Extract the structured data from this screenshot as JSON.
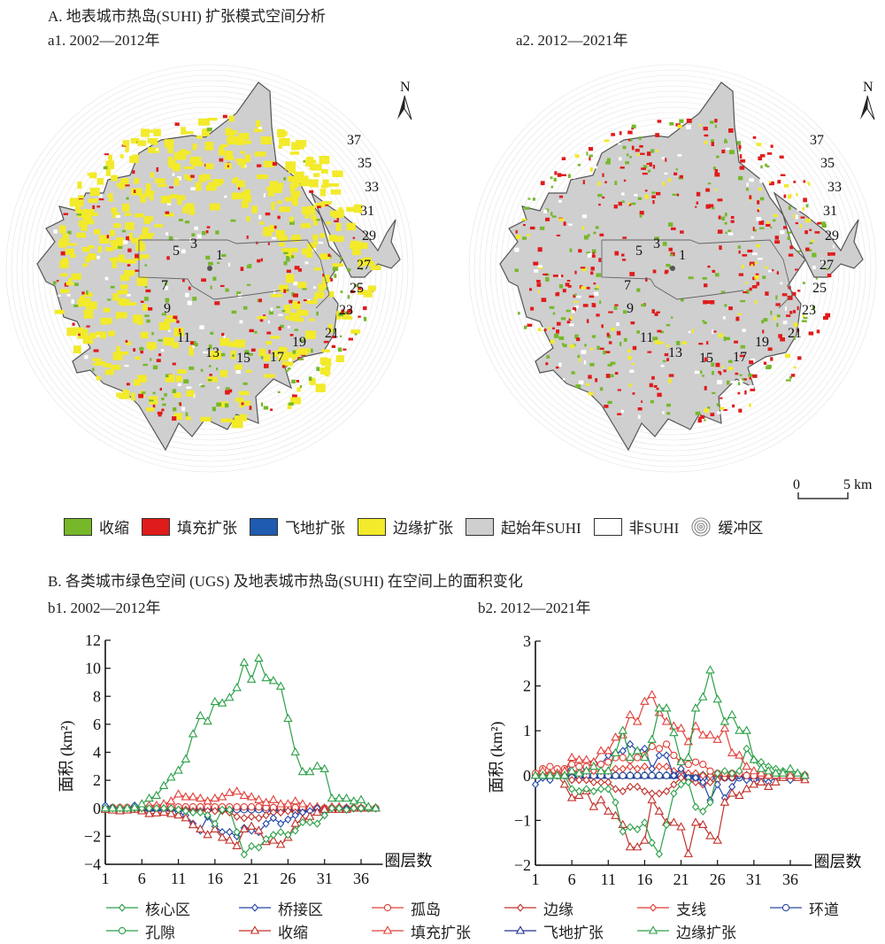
{
  "section_a": {
    "title": "A. 地表城市热岛(SUHI) 扩张模式空间分析",
    "maps": [
      {
        "id": "a1",
        "subtitle": "a1. 2002—2012年"
      },
      {
        "id": "a2",
        "subtitle": "a2. 2012—2021年"
      }
    ],
    "north_label": "N",
    "ring_labels": [
      "1",
      "3",
      "5",
      "7",
      "9",
      "11",
      "13",
      "15",
      "17",
      "19",
      "21",
      "23",
      "25",
      "27",
      "29",
      "31",
      "33",
      "35",
      "37"
    ],
    "scale_bar": {
      "start": "0",
      "end": "5 km"
    },
    "legend": [
      {
        "label": "收缩",
        "color": "#76b82a",
        "type": "swatch"
      },
      {
        "label": "填充扩张",
        "color": "#e01b1b",
        "type": "swatch"
      },
      {
        "label": "飞地扩张",
        "color": "#1f5bb0",
        "type": "swatch"
      },
      {
        "label": "边缘扩张",
        "color": "#f2ea2a",
        "type": "swatch"
      },
      {
        "label": "起始年SUHI",
        "color": "#cfcfcf",
        "type": "swatch"
      },
      {
        "label": "非SUHI",
        "color": "#ffffff",
        "type": "swatch"
      },
      {
        "label": "缓冲区",
        "color": "#bbbbbb",
        "type": "rings"
      }
    ]
  },
  "section_b": {
    "title": "B. 各类城市绿色空间 (UGS) 及地表城市热岛(SUHI) 在空间上的面积变化",
    "legend": [
      {
        "label": "核心区",
        "color": "#2ca048",
        "marker": "diamond"
      },
      {
        "label": "桥接区",
        "color": "#2346a8",
        "marker": "diamond"
      },
      {
        "label": "孤岛",
        "color": "#e0403a",
        "marker": "circle"
      },
      {
        "label": "边缘",
        "color": "#c0302a",
        "marker": "diamond"
      },
      {
        "label": "支线",
        "color": "#e03a30",
        "marker": "diamond"
      },
      {
        "label": "环道",
        "color": "#2a4aa0",
        "marker": "circle"
      },
      {
        "label": "孔隙",
        "color": "#2ca048",
        "marker": "circle"
      },
      {
        "label": "收缩",
        "color": "#c0302a",
        "marker": "triangle"
      },
      {
        "label": "填充扩张",
        "color": "#e0403a",
        "marker": "triangle"
      },
      {
        "label": "飞地扩张",
        "color": "#22358f",
        "marker": "triangle"
      },
      {
        "label": "边缘扩张",
        "color": "#2ca048",
        "marker": "triangle"
      }
    ]
  },
  "chart_data": [
    {
      "id": "b1",
      "type": "line",
      "title": "b1. 2002—2012年",
      "xlabel": "圈层数",
      "ylabel": "面积 (km²)",
      "ylim": [
        -4,
        12
      ],
      "yticks": [
        -4,
        -2,
        0,
        2,
        4,
        6,
        8,
        10,
        12
      ],
      "xticks": [
        1,
        6,
        11,
        16,
        21,
        26,
        31,
        36
      ],
      "x": [
        1,
        2,
        3,
        4,
        5,
        6,
        7,
        8,
        9,
        10,
        11,
        12,
        13,
        14,
        15,
        16,
        17,
        18,
        19,
        20,
        21,
        22,
        23,
        24,
        25,
        26,
        27,
        28,
        29,
        30,
        31,
        32,
        33,
        34,
        35,
        36,
        37,
        38
      ],
      "series": [
        {
          "name": "边缘扩张",
          "values": [
            0,
            0,
            0,
            0,
            0.05,
            0.3,
            0.7,
            0.9,
            1.6,
            2.2,
            2.7,
            3.5,
            5.3,
            6.6,
            6.2,
            7.6,
            7.5,
            7.9,
            8.6,
            10.4,
            9.2,
            10.7,
            9.3,
            9.1,
            8.7,
            6.4,
            4.0,
            2.6,
            2.6,
            3.0,
            2.8,
            0.7,
            0.7,
            0.7,
            0.5,
            0.6,
            0.1,
            0
          ]
        },
        {
          "name": "填充扩张",
          "values": [
            0,
            0,
            0,
            0,
            0.05,
            0.1,
            0.2,
            0.2,
            0.3,
            0.5,
            1.0,
            0.8,
            0.8,
            0.7,
            0.5,
            0.7,
            0.8,
            1.1,
            1.2,
            0.9,
            0.8,
            0.6,
            0.4,
            0.6,
            0.3,
            0.3,
            0.5,
            0.3,
            0.1,
            0.1,
            0,
            0.1,
            0.1,
            0,
            0.1,
            0,
            0,
            0
          ]
        },
        {
          "name": "收缩",
          "values": [
            -0.1,
            -0.15,
            -0.2,
            -0.15,
            -0.1,
            -0.2,
            -0.4,
            -0.35,
            -0.3,
            -0.4,
            -0.5,
            -0.7,
            -1.2,
            -1.5,
            -1.9,
            -1.5,
            -2.1,
            -2.3,
            -2.7,
            -1.5,
            -1.3,
            -1.6,
            -2.4,
            -2.3,
            -2.6,
            -2.1,
            -1.1,
            -0.8,
            -0.6,
            -0.3,
            -0.1,
            -0.1,
            -0.1,
            -0.1,
            0,
            0,
            0,
            0
          ]
        },
        {
          "name": "核心区",
          "values": [
            0,
            0,
            0,
            0,
            0,
            0,
            0,
            0,
            0,
            0,
            -0.1,
            -0.2,
            -0.3,
            -0.3,
            -0.5,
            -1.1,
            -0.1,
            -0.1,
            -1.7,
            -3.3,
            -2.7,
            -2.8,
            -2.2,
            -1.9,
            -1.7,
            -1.9,
            -1.6,
            -1.0,
            -1.0,
            -1.1,
            -0.5,
            0,
            0,
            -0.1,
            0,
            0,
            0,
            0
          ]
        },
        {
          "name": "桥接区",
          "values": [
            0.2,
            0.05,
            0,
            0,
            0.2,
            0,
            -0.1,
            -0.1,
            0,
            0,
            -0.3,
            -0.5,
            -1.1,
            -1.6,
            -0.6,
            -1.3,
            -1.7,
            -1.7,
            -2.0,
            -1.4,
            -1.6,
            -1.7,
            -1.1,
            -0.7,
            -1.1,
            -0.8,
            -0.5,
            -0.3,
            -0.2,
            0,
            -0.5,
            0,
            0,
            0,
            0,
            0,
            0,
            0
          ]
        },
        {
          "name": "边缘",
          "values": [
            0,
            0,
            0,
            0,
            0,
            0,
            0,
            0,
            0,
            -0.1,
            -0.1,
            -0.1,
            -0.2,
            -0.2,
            -0.2,
            -0.2,
            -0.2,
            -0.3,
            -0.6,
            -0.7,
            -0.6,
            -0.7,
            -0.5,
            -0.3,
            -0.3,
            -0.2,
            -0.3,
            -0.3,
            -0.2,
            0,
            0,
            0,
            0,
            0,
            0,
            0,
            0,
            0
          ]
        },
        {
          "name": "孤岛",
          "values": [
            0.05,
            0.05,
            0.05,
            0.05,
            0.05,
            0.1,
            0.1,
            0.1,
            0.15,
            0.1,
            0.1,
            0.1,
            0.1,
            0.1,
            0.1,
            0.1,
            0.1,
            0.1,
            0.1,
            0.1,
            0.1,
            0.1,
            0.05,
            0.05,
            0.05,
            0.05,
            0.05,
            0.05,
            0,
            0,
            0,
            0,
            0,
            0,
            0,
            0,
            0,
            0
          ]
        },
        {
          "name": "支线",
          "values": [
            0,
            0,
            0,
            0,
            0,
            0,
            0,
            0,
            0,
            0,
            0,
            0,
            0,
            0,
            0,
            0,
            0,
            0,
            0,
            0,
            0,
            0,
            0,
            0,
            0,
            0,
            0,
            0,
            0,
            0,
            0,
            0,
            0,
            0,
            0,
            0,
            0,
            0
          ]
        },
        {
          "name": "环道",
          "values": [
            0,
            0,
            0,
            0,
            0,
            0,
            -0.05,
            -0.05,
            -0.05,
            -0.05,
            -0.05,
            -0.05,
            -0.05,
            -0.05,
            -0.05,
            -0.05,
            -0.05,
            -0.1,
            -0.1,
            -0.1,
            -0.1,
            -0.1,
            -0.1,
            -0.1,
            -0.1,
            -0.1,
            -0.05,
            -0.05,
            -0.05,
            0,
            0,
            0,
            0,
            0,
            0,
            0,
            0,
            0
          ]
        },
        {
          "name": "孔隙",
          "values": [
            0,
            0,
            0,
            0,
            0,
            0,
            0,
            0,
            0,
            0,
            0,
            0,
            0,
            0,
            0,
            0,
            0,
            0,
            0,
            0,
            0,
            0,
            0,
            0,
            0,
            0,
            0,
            0,
            0,
            0,
            0,
            0,
            0,
            0,
            0,
            0,
            0,
            0
          ]
        },
        {
          "name": "飞地扩张",
          "values": [
            0,
            0,
            0,
            0,
            0,
            0,
            0,
            0,
            0,
            0,
            0,
            0,
            0,
            0,
            0,
            0,
            0,
            0,
            0,
            0,
            0,
            0,
            0,
            0,
            0,
            0,
            0,
            0,
            0,
            0,
            0,
            0,
            0,
            0,
            0,
            0,
            0,
            0
          ]
        }
      ]
    },
    {
      "id": "b2",
      "type": "line",
      "title": "b2. 2012—2021年",
      "xlabel": "圈层数",
      "ylabel": "面积 (km²)",
      "ylim": [
        -2,
        3
      ],
      "yticks": [
        -2,
        -1,
        0,
        1,
        2,
        3
      ],
      "xticks": [
        1,
        6,
        11,
        16,
        21,
        26,
        31,
        36
      ],
      "x": [
        1,
        2,
        3,
        4,
        5,
        6,
        7,
        8,
        9,
        10,
        11,
        12,
        13,
        14,
        15,
        16,
        17,
        18,
        19,
        20,
        21,
        22,
        23,
        24,
        25,
        26,
        27,
        28,
        29,
        30,
        31,
        32,
        33,
        34,
        35,
        36,
        37,
        38
      ],
      "series": [
        {
          "name": "边缘扩张",
          "values": [
            0,
            0,
            0,
            0,
            0,
            0.1,
            0.05,
            0.1,
            0.2,
            0.1,
            0.1,
            0.5,
            1.0,
            0.4,
            0.55,
            0.4,
            0.8,
            1.5,
            1.5,
            0.95,
            0.3,
            0.4,
            1.5,
            1.75,
            2.35,
            1.7,
            1.2,
            1.35,
            1.0,
            1.0,
            0.35,
            0.15,
            0.1,
            0.05,
            0.05,
            0.15,
            0.05,
            0
          ]
        },
        {
          "name": "填充扩张",
          "values": [
            0,
            0.1,
            0.05,
            0.05,
            0.1,
            0.4,
            0.35,
            0.35,
            0.3,
            0.55,
            0.55,
            0.85,
            0.9,
            1.35,
            1.2,
            1.65,
            1.8,
            1.4,
            1.2,
            1.1,
            1.05,
            0.75,
            1.1,
            0.9,
            0.9,
            0.8,
            1.05,
            0.5,
            0.45,
            0.2,
            0.1,
            0.05,
            0,
            0,
            0,
            0,
            0,
            0
          ]
        },
        {
          "name": "收缩",
          "values": [
            0,
            0,
            0,
            0,
            -0.2,
            -0.5,
            -0.45,
            -0.35,
            -0.7,
            -0.55,
            -0.8,
            -0.9,
            -1.1,
            -1.6,
            -1.6,
            -1.45,
            -0.55,
            -0.8,
            -1.05,
            -1.05,
            -1.15,
            -1.75,
            -1.05,
            -1.1,
            -1.35,
            -1.45,
            -0.6,
            -0.4,
            -0.45,
            -0.3,
            -0.2,
            -0.15,
            -0.25,
            -0.15,
            -0.05,
            0,
            -0.05,
            -0.1
          ]
        },
        {
          "name": "核心区",
          "values": [
            0,
            0,
            0,
            0,
            0,
            -0.3,
            -0.35,
            -0.3,
            -0.35,
            -0.3,
            -0.3,
            -0.6,
            -1.25,
            -1.15,
            -1.2,
            -1.05,
            -1.5,
            -1.75,
            -1.1,
            -0.4,
            -0.2,
            -0.15,
            -0.7,
            -0.8,
            -0.6,
            0.05,
            0.1,
            0.05,
            0.1,
            0.6,
            0.35,
            0.3,
            0.2,
            0.15,
            0.1,
            0.05,
            0.05,
            0
          ]
        },
        {
          "name": "桥接区",
          "values": [
            -0.2,
            -0.05,
            -0.1,
            0,
            0,
            0.25,
            0.2,
            0.15,
            0.3,
            0.25,
            0.45,
            0.5,
            0.55,
            0.7,
            0.55,
            0.6,
            0.15,
            0.45,
            0.45,
            0,
            0.15,
            -0.05,
            -0.05,
            -0.15,
            -0.55,
            -0.2,
            -0.5,
            -0.25,
            0,
            -0.1,
            -0.1,
            -0.1,
            -0.15,
            -0.05,
            0,
            -0.1,
            0,
            0
          ]
        },
        {
          "name": "孤岛",
          "values": [
            0.05,
            0.15,
            0.2,
            0.15,
            0.15,
            0.25,
            0.2,
            0.2,
            0.25,
            0.25,
            0.3,
            0.4,
            0.4,
            0.35,
            0.4,
            0.45,
            0.65,
            0.6,
            0.7,
            0.45,
            0.3,
            0.25,
            0.3,
            0.25,
            0.1,
            0.05,
            0.05,
            0.05,
            0.05,
            0,
            0,
            0,
            0,
            0,
            0,
            0,
            0,
            0
          ]
        },
        {
          "name": "边缘",
          "values": [
            0,
            0,
            -0.05,
            0,
            0,
            -0.1,
            -0.1,
            -0.1,
            -0.15,
            -0.15,
            -0.15,
            -0.3,
            -0.35,
            -0.25,
            -0.25,
            -0.35,
            -0.4,
            -0.4,
            -0.35,
            -0.2,
            -0.05,
            -0.1,
            -0.15,
            -0.2,
            -0.15,
            -0.1,
            -0.05,
            -0.05,
            0,
            0,
            0,
            0,
            0,
            0,
            0,
            0,
            0,
            0
          ]
        },
        {
          "name": "支线",
          "values": [
            0,
            0.05,
            0.05,
            0.05,
            0.1,
            0.1,
            0.1,
            0.1,
            0.1,
            0.1,
            0.1,
            0.15,
            0.15,
            0.2,
            0.15,
            0.2,
            0.15,
            0.2,
            0.2,
            0.1,
            0.1,
            0.05,
            0.05,
            0,
            0,
            0,
            0,
            0,
            0,
            0,
            0,
            0,
            0,
            0,
            0,
            0,
            0,
            0
          ]
        },
        {
          "name": "环道",
          "values": [
            0,
            0,
            0,
            0,
            0,
            -0.05,
            0,
            0,
            0,
            0,
            0,
            0,
            0,
            0,
            0,
            0,
            0,
            0,
            0,
            0,
            0,
            -0.05,
            -0.05,
            -0.05,
            -0.05,
            -0.05,
            -0.05,
            -0.05,
            -0.05,
            -0.05,
            -0.05,
            0,
            0,
            0,
            0,
            0,
            0,
            0
          ]
        },
        {
          "name": "孔隙",
          "values": [
            0,
            0,
            0,
            0,
            0,
            0,
            0,
            0,
            0,
            0,
            0,
            0,
            0,
            0,
            0,
            0,
            0,
            0,
            0,
            0,
            0,
            0,
            0,
            0,
            0,
            0,
            0,
            0,
            0,
            0,
            0,
            0,
            0,
            0,
            0,
            0,
            0,
            0
          ]
        },
        {
          "name": "飞地扩张",
          "values": [
            0,
            0,
            0,
            0,
            0,
            0,
            0,
            0,
            0,
            0,
            0,
            0,
            0,
            0,
            0,
            0,
            0,
            0,
            0,
            0,
            0,
            0,
            0,
            0,
            0,
            0,
            0,
            0,
            0,
            0,
            0,
            0,
            0,
            0,
            0,
            0,
            0,
            0
          ]
        }
      ]
    }
  ]
}
